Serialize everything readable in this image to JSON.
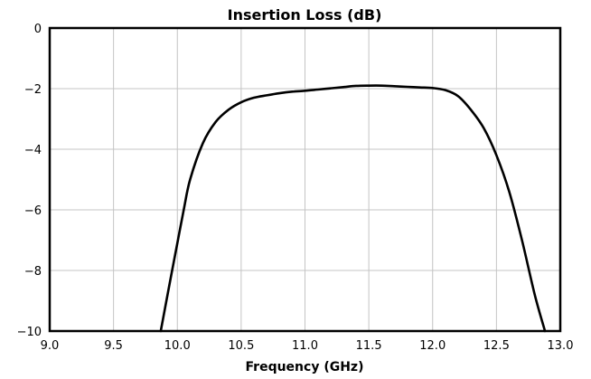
{
  "chart_data": {
    "type": "line",
    "title": "Insertion Loss (dB)",
    "xlabel": "Frequency (GHz)",
    "ylabel": "",
    "xlim": [
      9.0,
      13.0
    ],
    "ylim": [
      -10,
      0
    ],
    "xticks": [
      "9.0",
      "9.5",
      "10.0",
      "10.5",
      "11.0",
      "11.5",
      "12.0",
      "12.5",
      "13.0"
    ],
    "yticks": [
      "0",
      "−2",
      "−4",
      "−6",
      "−8",
      "−10"
    ],
    "grid": true,
    "series": [
      {
        "name": "",
        "color": "#000000",
        "x": [
          9.87,
          9.95,
          10.0,
          10.05,
          10.1,
          10.2,
          10.3,
          10.4,
          10.5,
          10.6,
          10.7,
          10.8,
          10.9,
          11.0,
          11.1,
          11.2,
          11.3,
          11.4,
          11.5,
          11.6,
          11.7,
          11.8,
          11.9,
          12.0,
          12.1,
          12.2,
          12.3,
          12.4,
          12.5,
          12.6,
          12.7,
          12.8,
          12.88
        ],
        "y": [
          -10.0,
          -8.2,
          -7.1,
          -6.0,
          -5.0,
          -3.8,
          -3.1,
          -2.7,
          -2.45,
          -2.3,
          -2.22,
          -2.15,
          -2.1,
          -2.07,
          -2.03,
          -1.99,
          -1.95,
          -1.91,
          -1.9,
          -1.9,
          -1.92,
          -1.94,
          -1.96,
          -1.98,
          -2.05,
          -2.25,
          -2.7,
          -3.3,
          -4.2,
          -5.4,
          -7.0,
          -8.8,
          -10.0
        ]
      }
    ]
  }
}
